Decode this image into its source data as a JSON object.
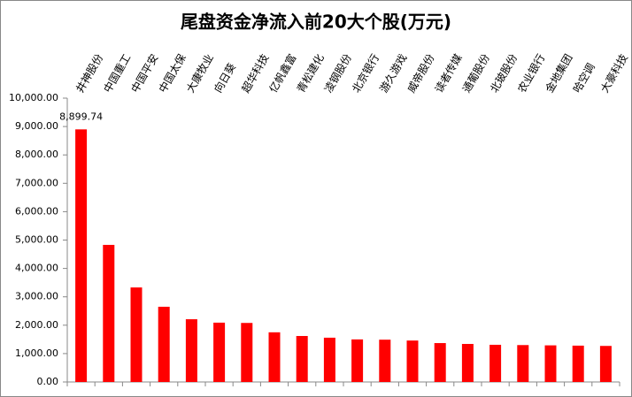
{
  "chart_data": {
    "type": "bar",
    "title": "尾盘资金净流入前20大个股(万元)",
    "categories": [
      "井神股份",
      "中国重工",
      "中国平安",
      "中国太保",
      "大康牧业",
      "向日葵",
      "超华科技",
      "亿帆鑫富",
      "青松建化",
      "凌钢股份",
      "北京银行",
      "游久游戏",
      "威帝股份",
      "读者传媒",
      "通葡股份",
      "北玻股份",
      "农业银行",
      "金地集团",
      "哈空调",
      "大豪科技"
    ],
    "values": [
      8899.74,
      4830,
      3330,
      2650,
      2210,
      2090,
      2080,
      1750,
      1620,
      1560,
      1500,
      1490,
      1460,
      1370,
      1340,
      1310,
      1300,
      1290,
      1280,
      1270
    ],
    "value_labels": [
      "8,899.74",
      null,
      null,
      null,
      null,
      null,
      null,
      null,
      null,
      null,
      null,
      null,
      null,
      null,
      null,
      null,
      null,
      null,
      null,
      null
    ],
    "color": "#ff0000",
    "ylim": [
      0,
      10000
    ],
    "yticks": [
      {
        "value": 0,
        "label": "0.00"
      },
      {
        "value": 1000,
        "label": "1,000.00"
      },
      {
        "value": 2000,
        "label": "2,000.00"
      },
      {
        "value": 3000,
        "label": "3,000.00"
      },
      {
        "value": 4000,
        "label": "4,000.00"
      },
      {
        "value": 5000,
        "label": "5,000.00"
      },
      {
        "value": 6000,
        "label": "6,000.00"
      },
      {
        "value": 7000,
        "label": "7,000.00"
      },
      {
        "value": 8000,
        "label": "8,000.00"
      },
      {
        "value": 9000,
        "label": "9,000.00"
      },
      {
        "value": 10000,
        "label": "10,000.00"
      }
    ],
    "grid": false
  }
}
